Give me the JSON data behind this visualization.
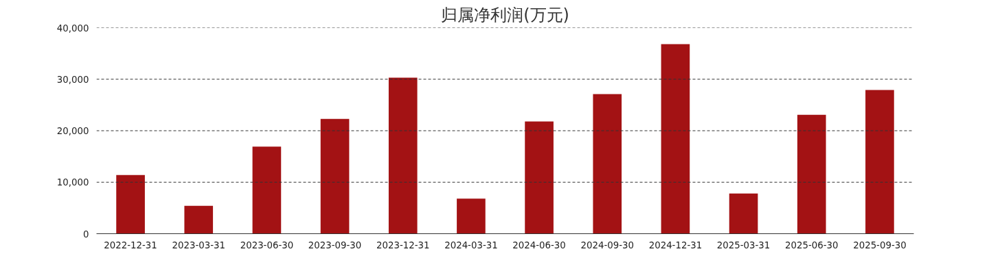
{
  "chart_data": {
    "type": "bar",
    "title": "归属净利润(万元)",
    "categories": [
      "2022-12-31",
      "2023-03-31",
      "2023-06-30",
      "2023-09-30",
      "2023-12-31",
      "2024-03-31",
      "2024-06-30",
      "2024-09-30",
      "2024-12-31",
      "2025-03-31",
      "2025-06-30",
      "2025-09-30"
    ],
    "values": [
      11400,
      5400,
      16900,
      22300,
      30300,
      6800,
      21800,
      27100,
      36800,
      7800,
      23100,
      27900
    ],
    "color": "#a31214",
    "ylim": [
      0,
      40000
    ],
    "yticks": [
      0,
      {
        "value": 10000,
        "label": "10,000"
      },
      {
        "value": 20000,
        "label": "20,000"
      },
      {
        "value": 30000,
        "label": "30,000"
      },
      {
        "value": 40000,
        "label": "40,000"
      }
    ],
    "grid": "y",
    "line_style": "dashed"
  }
}
